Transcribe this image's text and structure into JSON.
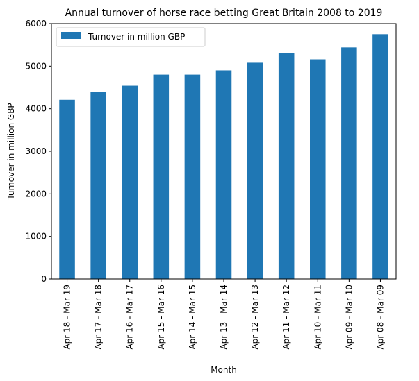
{
  "chart_data": {
    "type": "bar",
    "title": "Annual turnover of horse race betting Great Britain 2008 to 2019",
    "xlabel": "Month",
    "ylabel": "Turnover in million GBP",
    "ylim": [
      0,
      6000
    ],
    "yticks": [
      0,
      1000,
      2000,
      3000,
      4000,
      5000,
      6000
    ],
    "grid": false,
    "legend_position": "top-left",
    "categories": [
      "Apr 18 - Mar 19",
      "Apr 17 - Mar 18",
      "Apr 16 - Mar 17",
      "Apr 15 - Mar 16",
      "Apr 14 - Mar 15",
      "Apr 13 - Mar 14",
      "Apr 12 - Mar 13",
      "Apr 11 - Mar 12",
      "Apr 10 - Mar 11",
      "Apr 09 - Mar 10",
      "Apr 08 - Mar 09"
    ],
    "series": [
      {
        "name": "Turnover in million GBP",
        "color": "#1f77b4",
        "values": [
          4210,
          4390,
          4540,
          4800,
          4800,
          4900,
          5080,
          5310,
          5160,
          5440,
          5750
        ]
      }
    ]
  }
}
